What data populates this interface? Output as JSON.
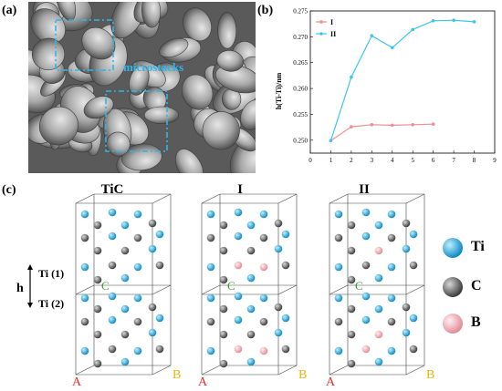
{
  "panels": {
    "a": "(a)",
    "b": "(b)",
    "c": "(c)"
  },
  "sem": {
    "annotation": "microstacks",
    "box_color": "#2fb6e8"
  },
  "chart_data": {
    "type": "line",
    "xlabel": "",
    "ylabel": "h(Ti-Ti)/nm",
    "xlim": [
      0,
      9
    ],
    "ylim": [
      0.2475,
      0.275
    ],
    "x_ticks": [
      0,
      1,
      2,
      3,
      4,
      5,
      6,
      7,
      8,
      9
    ],
    "y_ticks": [
      0.25,
      0.255,
      0.26,
      0.265,
      0.27,
      0.275
    ],
    "legend_position": "top-left",
    "series": [
      {
        "name": "I",
        "color": "#f08c96",
        "x": [
          1,
          2,
          3,
          4,
          5,
          6
        ],
        "y": [
          0.2499,
          0.2526,
          0.253,
          0.2529,
          0.253,
          0.2531
        ]
      },
      {
        "name": "II",
        "color": "#3cc6ee",
        "x": [
          1,
          2,
          3,
          4,
          5,
          6,
          7,
          8
        ],
        "y": [
          0.2499,
          0.2622,
          0.2702,
          0.2679,
          0.2714,
          0.2731,
          0.2732,
          0.2729
        ]
      }
    ]
  },
  "structures": {
    "titles": [
      "TiC",
      "I",
      "II"
    ],
    "axis_labels": {
      "a": "A",
      "b": "B",
      "c": "C"
    },
    "layer_labels": {
      "upper": "Ti (1)",
      "lower": "Ti (2)",
      "spacing": "h"
    },
    "colors": {
      "ti": "#19a6dc",
      "c": "#6b6b6b",
      "b": "#f0a8b0",
      "a_label": "#e0302c",
      "b_label": "#f0b400",
      "c_label": "#33a02c"
    }
  },
  "legend": {
    "items": [
      {
        "label": "Ti",
        "icon": "ti-atom-icon"
      },
      {
        "label": "C",
        "icon": "c-atom-icon"
      },
      {
        "label": "B",
        "icon": "b-atom-icon"
      }
    ]
  }
}
